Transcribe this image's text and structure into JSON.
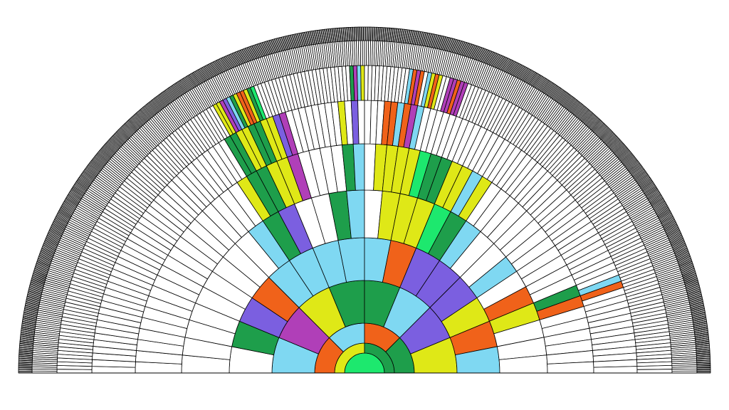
{
  "chart_data": {
    "type": "fan",
    "title": "",
    "generations": 11,
    "palette": {
      "empty": "#ffffff",
      "lightgreen": "#1de86e",
      "green": "#1e9e4b",
      "yellow": "#dfe817",
      "orange": "#f0621a",
      "lightblue": "#7fd8f2",
      "purple": "#7b5fe0",
      "magenta": "#b03fb8"
    },
    "rings": [
      {
        "generation": 0,
        "segments": 1,
        "colored": [
          [
            0,
            "lightgreen"
          ]
        ]
      },
      {
        "generation": 1,
        "segments": 2,
        "colored": [
          [
            0,
            "yellow"
          ],
          [
            1,
            "green"
          ]
        ]
      },
      {
        "generation": 2,
        "segments": 4,
        "colored": [
          [
            0,
            "orange"
          ],
          [
            1,
            "lightblue"
          ],
          [
            2,
            "orange"
          ],
          [
            3,
            "green"
          ]
        ]
      },
      {
        "generation": 3,
        "segments": 8,
        "colored": [
          [
            0,
            "lightblue"
          ],
          [
            1,
            "magenta"
          ],
          [
            2,
            "yellow"
          ],
          [
            3,
            "green"
          ],
          [
            4,
            "green"
          ],
          [
            5,
            "lightblue"
          ],
          [
            6,
            "purple"
          ],
          [
            7,
            "yellow"
          ]
        ]
      },
      {
        "generation": 4,
        "segments": 16,
        "colored": [
          [
            1,
            "green"
          ],
          [
            2,
            "purple"
          ],
          [
            3,
            "orange"
          ],
          [
            4,
            "lightblue"
          ],
          [
            5,
            "lightblue"
          ],
          [
            6,
            "lightblue"
          ],
          [
            7,
            "lightblue"
          ],
          [
            8,
            "lightblue"
          ],
          [
            9,
            "orange"
          ],
          [
            10,
            "purple"
          ],
          [
            11,
            "purple"
          ],
          [
            12,
            "purple"
          ],
          [
            13,
            "yellow"
          ],
          [
            14,
            "orange"
          ],
          [
            15,
            "lightblue"
          ]
        ]
      },
      {
        "generation": 5,
        "segments": 32,
        "colored": [
          [
            9,
            "lightblue"
          ],
          [
            10,
            "green"
          ],
          [
            11,
            "purple"
          ],
          [
            14,
            "green"
          ],
          [
            15,
            "lightblue"
          ],
          [
            17,
            "yellow"
          ],
          [
            18,
            "yellow"
          ],
          [
            19,
            "yellow"
          ],
          [
            20,
            "lightgreen"
          ],
          [
            21,
            "green"
          ],
          [
            22,
            "lightblue"
          ],
          [
            25,
            "lightblue"
          ],
          [
            27,
            "orange"
          ],
          [
            28,
            "yellow"
          ]
        ]
      },
      {
        "generation": 6,
        "segments": 64,
        "colored": [
          [
            20,
            "yellow"
          ],
          [
            21,
            "green"
          ],
          [
            22,
            "green"
          ],
          [
            23,
            "yellow"
          ],
          [
            24,
            "yellow"
          ],
          [
            25,
            "magenta"
          ],
          [
            30,
            "green"
          ],
          [
            31,
            "lightblue"
          ],
          [
            33,
            "yellow"
          ],
          [
            34,
            "yellow"
          ],
          [
            35,
            "yellow"
          ],
          [
            36,
            "yellow"
          ],
          [
            37,
            "lightgreen"
          ],
          [
            38,
            "green"
          ],
          [
            39,
            "green"
          ],
          [
            40,
            "yellow"
          ],
          [
            41,
            "yellow"
          ],
          [
            42,
            "lightblue"
          ],
          [
            43,
            "yellow"
          ],
          [
            56,
            "green"
          ],
          [
            57,
            "orange"
          ]
        ]
      },
      {
        "generation": 7,
        "segments": 128,
        "colored": [
          [
            42,
            "green"
          ],
          [
            43,
            "green"
          ],
          [
            44,
            "yellow"
          ],
          [
            45,
            "yellow"
          ],
          [
            46,
            "green"
          ],
          [
            47,
            "green"
          ],
          [
            48,
            "yellow"
          ],
          [
            49,
            "yellow"
          ],
          [
            50,
            "purple"
          ],
          [
            51,
            "magenta"
          ],
          [
            60,
            "yellow"
          ],
          [
            62,
            "purple"
          ],
          [
            67,
            "orange"
          ],
          [
            68,
            "orange"
          ],
          [
            69,
            "lightblue"
          ],
          [
            70,
            "orange"
          ],
          [
            71,
            "magenta"
          ],
          [
            72,
            "lightblue"
          ],
          [
            113,
            "lightblue"
          ],
          [
            114,
            "orange"
          ]
        ]
      },
      {
        "generation": 8,
        "segments": 256,
        "colored": [
          [
            86,
            "yellow"
          ],
          [
            87,
            "yellow"
          ],
          [
            88,
            "magenta"
          ],
          [
            89,
            "purple"
          ],
          [
            90,
            "lightblue"
          ],
          [
            91,
            "green"
          ],
          [
            92,
            "yellow"
          ],
          [
            93,
            "orange"
          ],
          [
            94,
            "orange"
          ],
          [
            95,
            "yellow"
          ],
          [
            96,
            "green"
          ],
          [
            97,
            "lightgreen"
          ],
          [
            124,
            "green"
          ],
          [
            125,
            "magenta"
          ],
          [
            126,
            "lightblue"
          ],
          [
            127,
            "yellow"
          ],
          [
            140,
            "lightblue"
          ],
          [
            141,
            "orange"
          ],
          [
            142,
            "magenta"
          ],
          [
            143,
            "orange"
          ],
          [
            145,
            "lightblue"
          ],
          [
            146,
            "yellow"
          ],
          [
            147,
            "orange"
          ],
          [
            148,
            "yellow"
          ],
          [
            151,
            "magenta"
          ],
          [
            152,
            "magenta"
          ],
          [
            153,
            "orange"
          ],
          [
            154,
            "magenta"
          ],
          [
            155,
            "magenta"
          ]
        ]
      },
      {
        "generation": 9,
        "segments": 512,
        "colored": []
      },
      {
        "generation": 10,
        "segments": 1024,
        "colored": []
      }
    ]
  }
}
